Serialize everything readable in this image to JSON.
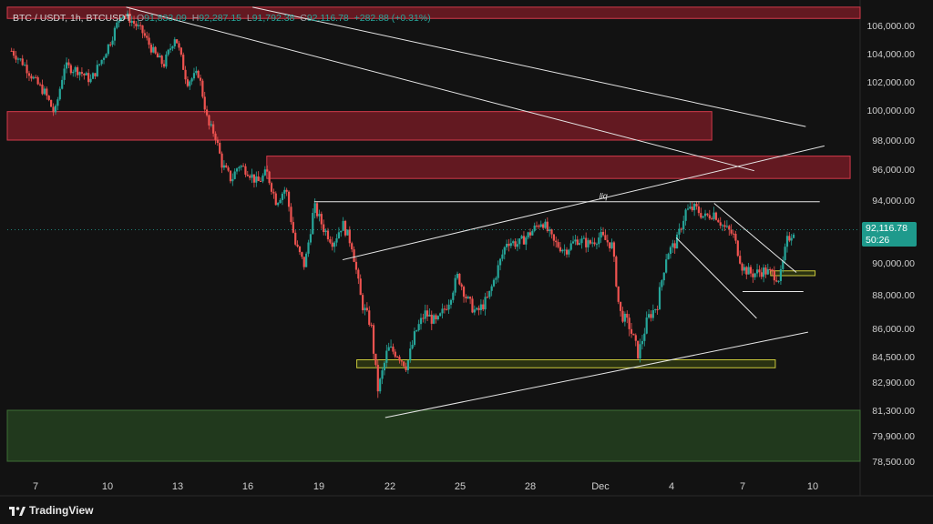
{
  "header": {
    "symbol": "BTC / USDT, 1h, BTCUSDT",
    "open_label": "O",
    "open": "91,833.09",
    "high_label": "H",
    "high": "92,287.15",
    "low_label": "L",
    "low": "91,792.38",
    "close_label": "C",
    "close": "92,116.78",
    "change": "+282.88 (+0.31%)"
  },
  "price_tag": {
    "price": "92,116.78",
    "countdown": "50:26"
  },
  "brand": {
    "name": "TradingView"
  },
  "colors": {
    "background": "#121212",
    "up_candle": "#26a69a",
    "down_candle": "#ef5350",
    "resistance_zone": "#a51f2e",
    "support_zone": "#2d5a26",
    "demand_zone_outline": "#c9c83a",
    "trendline": "#e6e6e6"
  },
  "chart_data": {
    "type": "candlestick",
    "title": "BTC / USDT, 1h, BTCUSDT",
    "xlabel": "",
    "ylabel": "",
    "x_ticks": [
      "7",
      "10",
      "13",
      "16",
      "19",
      "22",
      "25",
      "28",
      "Dec",
      "4",
      "7",
      "10"
    ],
    "y_ticks": [
      "106,000.00",
      "104,000.00",
      "102,000.00",
      "100,000.00",
      "98,000.00",
      "96,000.00",
      "94,000.00",
      "90,000.00",
      "88,000.00",
      "86,000.00",
      "84,500.00",
      "82,900.00",
      "81,300.00",
      "79,900.00",
      "78,500.00"
    ],
    "current_price": 92116.78,
    "price_path": [
      {
        "day": 6.0,
        "price": 104200
      },
      {
        "day": 6.5,
        "price": 103300
      },
      {
        "day": 7.0,
        "price": 102000
      },
      {
        "day": 7.4,
        "price": 101200
      },
      {
        "day": 7.8,
        "price": 99700
      },
      {
        "day": 8.2,
        "price": 103100
      },
      {
        "day": 8.8,
        "price": 102800
      },
      {
        "day": 9.3,
        "price": 102100
      },
      {
        "day": 9.8,
        "price": 103700
      },
      {
        "day": 10.2,
        "price": 105200
      },
      {
        "day": 10.6,
        "price": 106900
      },
      {
        "day": 11.0,
        "price": 106400
      },
      {
        "day": 11.5,
        "price": 105500
      },
      {
        "day": 12.0,
        "price": 104000
      },
      {
        "day": 12.4,
        "price": 103200
      },
      {
        "day": 12.9,
        "price": 105300
      },
      {
        "day": 13.4,
        "price": 102000
      },
      {
        "day": 13.9,
        "price": 102600
      },
      {
        "day": 14.3,
        "price": 99000
      },
      {
        "day": 14.6,
        "price": 98400
      },
      {
        "day": 14.9,
        "price": 96300
      },
      {
        "day": 15.3,
        "price": 95300
      },
      {
        "day": 15.6,
        "price": 96300
      },
      {
        "day": 16.0,
        "price": 95900
      },
      {
        "day": 16.4,
        "price": 95100
      },
      {
        "day": 16.8,
        "price": 95800
      },
      {
        "day": 17.2,
        "price": 93900
      },
      {
        "day": 17.6,
        "price": 94800
      },
      {
        "day": 18.0,
        "price": 91200
      },
      {
        "day": 18.4,
        "price": 89800
      },
      {
        "day": 18.8,
        "price": 93600
      },
      {
        "day": 19.2,
        "price": 92200
      },
      {
        "day": 19.6,
        "price": 91300
      },
      {
        "day": 20.0,
        "price": 92500
      },
      {
        "day": 20.4,
        "price": 91100
      },
      {
        "day": 20.8,
        "price": 87500
      },
      {
        "day": 21.2,
        "price": 86200
      },
      {
        "day": 21.5,
        "price": 82400
      },
      {
        "day": 21.9,
        "price": 84900
      },
      {
        "day": 22.3,
        "price": 84700
      },
      {
        "day": 22.7,
        "price": 83900
      },
      {
        "day": 23.1,
        "price": 85800
      },
      {
        "day": 23.5,
        "price": 86900
      },
      {
        "day": 24.0,
        "price": 86300
      },
      {
        "day": 24.5,
        "price": 87600
      },
      {
        "day": 24.9,
        "price": 89200
      },
      {
        "day": 25.3,
        "price": 87700
      },
      {
        "day": 25.7,
        "price": 86900
      },
      {
        "day": 26.2,
        "price": 87800
      },
      {
        "day": 26.6,
        "price": 89600
      },
      {
        "day": 27.0,
        "price": 91400
      },
      {
        "day": 27.5,
        "price": 91200
      },
      {
        "day": 28.0,
        "price": 91900
      },
      {
        "day": 28.5,
        "price": 92700
      },
      {
        "day": 29.0,
        "price": 91300
      },
      {
        "day": 29.5,
        "price": 90800
      },
      {
        "day": 30.0,
        "price": 91500
      },
      {
        "day": 30.5,
        "price": 91200
      },
      {
        "day": 31.0,
        "price": 91700
      },
      {
        "day": 31.5,
        "price": 91100
      },
      {
        "day": 31.8,
        "price": 87000
      },
      {
        "day": 32.2,
        "price": 86200
      },
      {
        "day": 32.6,
        "price": 84600
      },
      {
        "day": 33.0,
        "price": 86600
      },
      {
        "day": 33.4,
        "price": 87400
      },
      {
        "day": 33.8,
        "price": 90600
      },
      {
        "day": 34.2,
        "price": 91300
      },
      {
        "day": 34.6,
        "price": 93300
      },
      {
        "day": 35.0,
        "price": 93500
      },
      {
        "day": 35.4,
        "price": 92900
      },
      {
        "day": 35.8,
        "price": 93200
      },
      {
        "day": 36.2,
        "price": 92300
      },
      {
        "day": 36.6,
        "price": 91800
      },
      {
        "day": 37.0,
        "price": 89700
      },
      {
        "day": 37.4,
        "price": 89300
      },
      {
        "day": 37.9,
        "price": 89500
      },
      {
        "day": 38.3,
        "price": 89300
      },
      {
        "day": 38.6,
        "price": 89000
      },
      {
        "day": 38.9,
        "price": 91400
      },
      {
        "day": 39.2,
        "price": 92117
      }
    ],
    "zones": [
      {
        "type": "resistance",
        "from_day": 3.0,
        "to_day": 44.4,
        "low": 106500,
        "high": 107300
      },
      {
        "type": "resistance",
        "from_day": 3.0,
        "to_day": 35.7,
        "low": 98000,
        "high": 99900
      },
      {
        "type": "resistance",
        "from_day": 16.8,
        "to_day": 41.6,
        "low": 95400,
        "high": 96900
      },
      {
        "type": "demand",
        "from_day": 20.6,
        "to_day": 38.4,
        "low": 83800,
        "high": 84300
      },
      {
        "type": "demand",
        "from_day": 38.2,
        "to_day": 40.1,
        "low": 89200,
        "high": 89500
      },
      {
        "type": "support",
        "from_day": 3.0,
        "to_day": 44.4,
        "low": 78500,
        "high": 81300
      }
    ],
    "trendlines": [
      {
        "from": {
          "day": 10.8,
          "price": 107300
        },
        "to": {
          "day": 37.5,
          "price": 95900
        }
      },
      {
        "from": {
          "day": 16.2,
          "price": 107300
        },
        "to": {
          "day": 39.7,
          "price": 98900
        }
      },
      {
        "from": {
          "day": 20.0,
          "price": 90200
        },
        "to": {
          "day": 40.5,
          "price": 97600
        }
      },
      {
        "from": {
          "day": 21.8,
          "price": 80900
        },
        "to": {
          "day": 39.8,
          "price": 85800
        }
      },
      {
        "from": {
          "day": 34.2,
          "price": 91600
        },
        "to": {
          "day": 37.6,
          "price": 86600
        }
      },
      {
        "from": {
          "day": 35.8,
          "price": 93800
        },
        "to": {
          "day": 39.3,
          "price": 89400
        }
      }
    ],
    "levels": [
      {
        "price": 93900,
        "from_day": 18.8,
        "to_day": 40.3,
        "label": "liq"
      },
      {
        "price": 88200,
        "from_day": 37.0,
        "to_day": 39.6,
        "label": ""
      }
    ]
  }
}
